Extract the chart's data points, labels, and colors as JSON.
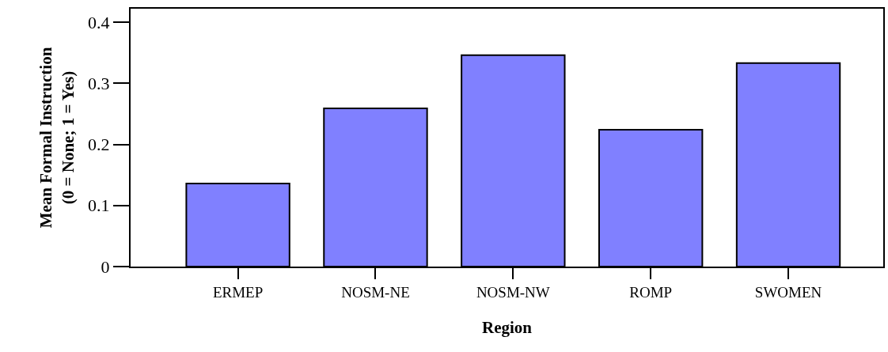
{
  "chart_data": {
    "type": "bar",
    "xlabel": "Region",
    "ylabel": "Mean Formal Instruction\n(0 = None; 1 = Yes)",
    "categories": [
      "ERMEP",
      "NOSM-NE",
      "NOSM-NW",
      "ROMP",
      "SWOMEN"
    ],
    "values": [
      0.136,
      0.259,
      0.346,
      0.224,
      0.333
    ],
    "color": "#8080ff",
    "ylim": [
      0,
      0.422
    ],
    "yticks": [
      0,
      0.1,
      0.2,
      0.3,
      0.4
    ]
  }
}
